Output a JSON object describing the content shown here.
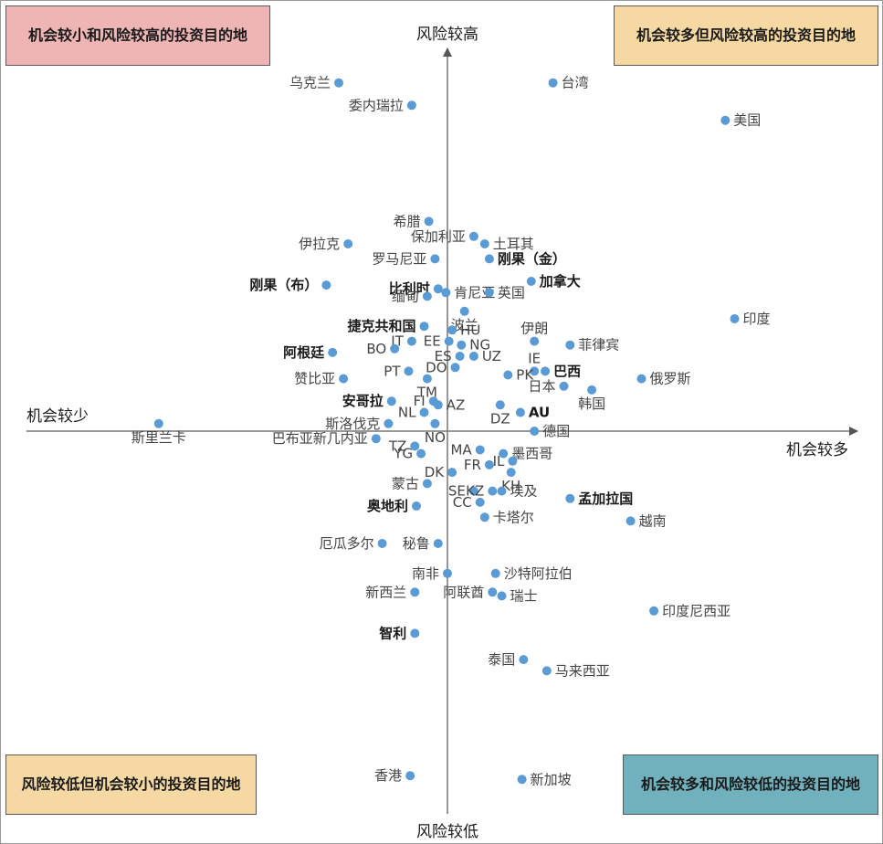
{
  "quadrants": {
    "top_left": {
      "label": "机会较小和风险较高的投资目的地",
      "color": "#efb4b4"
    },
    "top_right": {
      "label": "机会较多但风险较高的投资目的地",
      "color": "#f6d9a2"
    },
    "bottom_left": {
      "label": "风险较低但机会较小的投资目的地",
      "color": "#f6d9a2"
    },
    "bottom_right": {
      "label": "机会较多和风险较低的投资目的地",
      "color": "#70b1bd"
    }
  },
  "chart_data": {
    "type": "scatter",
    "y_axis_top_label": "风险较高",
    "y_axis_bottom_label": "风险较低",
    "x_axis_left_label": "机会较少",
    "x_axis_right_label": "机会较多",
    "grid": false,
    "point_color": "#5b9bd5",
    "points": [
      {
        "label": "乌克兰",
        "x": -0.7,
        "y": 0.93,
        "bold": false
      },
      {
        "label": "台湾",
        "x": 0.68,
        "y": 0.93,
        "bold": false
      },
      {
        "label": "委内瑞拉",
        "x": -0.23,
        "y": 0.87,
        "bold": false
      },
      {
        "label": "美国",
        "x": 1.79,
        "y": 0.83,
        "bold": false
      },
      {
        "label": "希腊",
        "x": -0.12,
        "y": 0.56,
        "bold": false
      },
      {
        "label": "保加利亚",
        "x": 0.17,
        "y": 0.52,
        "bold": false
      },
      {
        "label": "土耳其",
        "x": 0.24,
        "y": 0.5,
        "bold": false
      },
      {
        "label": "伊拉克",
        "x": -0.64,
        "y": 0.5,
        "bold": false
      },
      {
        "label": "罗马尼亚",
        "x": -0.08,
        "y": 0.46,
        "bold": false
      },
      {
        "label": "刚果（金）",
        "x": 0.27,
        "y": 0.46,
        "bold": true
      },
      {
        "label": "肯尼亚",
        "x": -0.01,
        "y": 0.37,
        "bold": false
      },
      {
        "label": "比利时",
        "x": -0.06,
        "y": 0.38,
        "bold": true
      },
      {
        "label": "加拿大",
        "x": 0.54,
        "y": 0.4,
        "bold": true
      },
      {
        "label": "刚果（布）",
        "x": -0.78,
        "y": 0.39,
        "bold": true
      },
      {
        "label": "缅甸",
        "x": -0.13,
        "y": 0.36,
        "bold": false
      },
      {
        "label": "英国",
        "x": 0.27,
        "y": 0.37,
        "bold": false
      },
      {
        "label": "波兰",
        "x": 0.11,
        "y": 0.32,
        "bold": false
      },
      {
        "label": "印度",
        "x": 1.85,
        "y": 0.3,
        "bold": false
      },
      {
        "label": "捷克共和国",
        "x": -0.15,
        "y": 0.28,
        "bold": true
      },
      {
        "label": "HU",
        "x": 0.03,
        "y": 0.27,
        "bold": false
      },
      {
        "label": "伊朗",
        "x": 0.56,
        "y": 0.24,
        "bold": false
      },
      {
        "label": "IT",
        "x": -0.23,
        "y": 0.24,
        "bold": false
      },
      {
        "label": "EE",
        "x": 0.01,
        "y": 0.24,
        "bold": false
      },
      {
        "label": "NG",
        "x": 0.09,
        "y": 0.23,
        "bold": false
      },
      {
        "label": "菲律宾",
        "x": 0.79,
        "y": 0.23,
        "bold": false
      },
      {
        "label": "阿根廷",
        "x": -0.74,
        "y": 0.21,
        "bold": true
      },
      {
        "label": "BO",
        "x": -0.34,
        "y": 0.22,
        "bold": false
      },
      {
        "label": "ES",
        "x": 0.08,
        "y": 0.2,
        "bold": false
      },
      {
        "label": "UZ",
        "x": 0.17,
        "y": 0.2,
        "bold": false
      },
      {
        "label": "IE",
        "x": 0.56,
        "y": 0.16,
        "bold": false
      },
      {
        "label": "巴西",
        "x": 0.63,
        "y": 0.16,
        "bold": true
      },
      {
        "label": "DO",
        "x": 0.05,
        "y": 0.17,
        "bold": false
      },
      {
        "label": "PT",
        "x": -0.25,
        "y": 0.16,
        "bold": false
      },
      {
        "label": "赞比亚",
        "x": -0.67,
        "y": 0.14,
        "bold": false
      },
      {
        "label": "PK",
        "x": 0.39,
        "y": 0.15,
        "bold": false
      },
      {
        "label": "TM",
        "x": -0.13,
        "y": 0.14,
        "bold": false
      },
      {
        "label": "俄罗斯",
        "x": 1.25,
        "y": 0.14,
        "bold": false
      },
      {
        "label": "日本",
        "x": 0.75,
        "y": 0.12,
        "bold": false
      },
      {
        "label": "韩国",
        "x": 0.93,
        "y": 0.11,
        "bold": false
      },
      {
        "label": "FI",
        "x": -0.09,
        "y": 0.08,
        "bold": false
      },
      {
        "label": "安哥拉",
        "x": -0.36,
        "y": 0.08,
        "bold": true
      },
      {
        "label": "AZ",
        "x": -0.06,
        "y": 0.07,
        "bold": false
      },
      {
        "label": "AU",
        "x": 0.47,
        "y": 0.05,
        "bold": true
      },
      {
        "label": "NL",
        "x": -0.15,
        "y": 0.05,
        "bold": false
      },
      {
        "label": "DZ",
        "x": 0.34,
        "y": 0.07,
        "bold": false
      },
      {
        "label": "斯洛伐克",
        "x": -0.38,
        "y": 0.02,
        "bold": false
      },
      {
        "label": "斯里兰卡",
        "x": -1.86,
        "y": 0.02,
        "bold": false
      },
      {
        "label": "NO",
        "x": -0.08,
        "y": 0.02,
        "bold": false
      },
      {
        "label": "德国",
        "x": 0.56,
        "y": 0.0,
        "bold": false
      },
      {
        "label": "巴布亚新几内亚",
        "x": -0.46,
        "y": -0.02,
        "bold": false
      },
      {
        "label": "TZ",
        "x": -0.21,
        "y": -0.04,
        "bold": false
      },
      {
        "label": "MA",
        "x": 0.21,
        "y": -0.05,
        "bold": false
      },
      {
        "label": "墨西哥",
        "x": 0.36,
        "y": -0.06,
        "bold": false
      },
      {
        "label": "YG",
        "x": -0.17,
        "y": -0.06,
        "bold": false
      },
      {
        "label": "IL",
        "x": 0.42,
        "y": -0.08,
        "bold": false
      },
      {
        "label": "FR",
        "x": 0.27,
        "y": -0.09,
        "bold": false
      },
      {
        "label": "DK",
        "x": 0.03,
        "y": -0.11,
        "bold": false
      },
      {
        "label": "KH",
        "x": 0.41,
        "y": -0.11,
        "bold": false
      },
      {
        "label": "蒙古",
        "x": -0.13,
        "y": -0.14,
        "bold": false
      },
      {
        "label": "SE",
        "x": 0.17,
        "y": -0.16,
        "bold": false
      },
      {
        "label": "KZ",
        "x": 0.29,
        "y": -0.16,
        "bold": false
      },
      {
        "label": "埃及",
        "x": 0.35,
        "y": -0.16,
        "bold": false
      },
      {
        "label": "孟加拉国",
        "x": 0.79,
        "y": -0.18,
        "bold": true
      },
      {
        "label": "CC",
        "x": 0.21,
        "y": -0.19,
        "bold": false
      },
      {
        "label": "奥地利",
        "x": -0.2,
        "y": -0.2,
        "bold": true
      },
      {
        "label": "卡塔尔",
        "x": 0.24,
        "y": -0.23,
        "bold": false
      },
      {
        "label": "越南",
        "x": 1.18,
        "y": -0.24,
        "bold": false
      },
      {
        "label": "厄瓜多尔",
        "x": -0.42,
        "y": -0.3,
        "bold": false
      },
      {
        "label": "秘鲁",
        "x": -0.06,
        "y": -0.3,
        "bold": false
      },
      {
        "label": "南非",
        "x": 0.0,
        "y": -0.38,
        "bold": false
      },
      {
        "label": "沙特阿拉伯",
        "x": 0.31,
        "y": -0.38,
        "bold": false
      },
      {
        "label": "新西兰",
        "x": -0.21,
        "y": -0.43,
        "bold": false
      },
      {
        "label": "阿联酋",
        "x": 0.29,
        "y": -0.43,
        "bold": false
      },
      {
        "label": "瑞士",
        "x": 0.35,
        "y": -0.44,
        "bold": false
      },
      {
        "label": "印度尼西亚",
        "x": 1.33,
        "y": -0.48,
        "bold": false
      },
      {
        "label": "智利",
        "x": -0.21,
        "y": -0.54,
        "bold": true
      },
      {
        "label": "泰国",
        "x": 0.49,
        "y": -0.61,
        "bold": false
      },
      {
        "label": "马来西亚",
        "x": 0.64,
        "y": -0.64,
        "bold": false
      },
      {
        "label": "香港",
        "x": -0.24,
        "y": -0.92,
        "bold": false
      },
      {
        "label": "新加坡",
        "x": 0.48,
        "y": -0.93,
        "bold": false
      }
    ]
  }
}
